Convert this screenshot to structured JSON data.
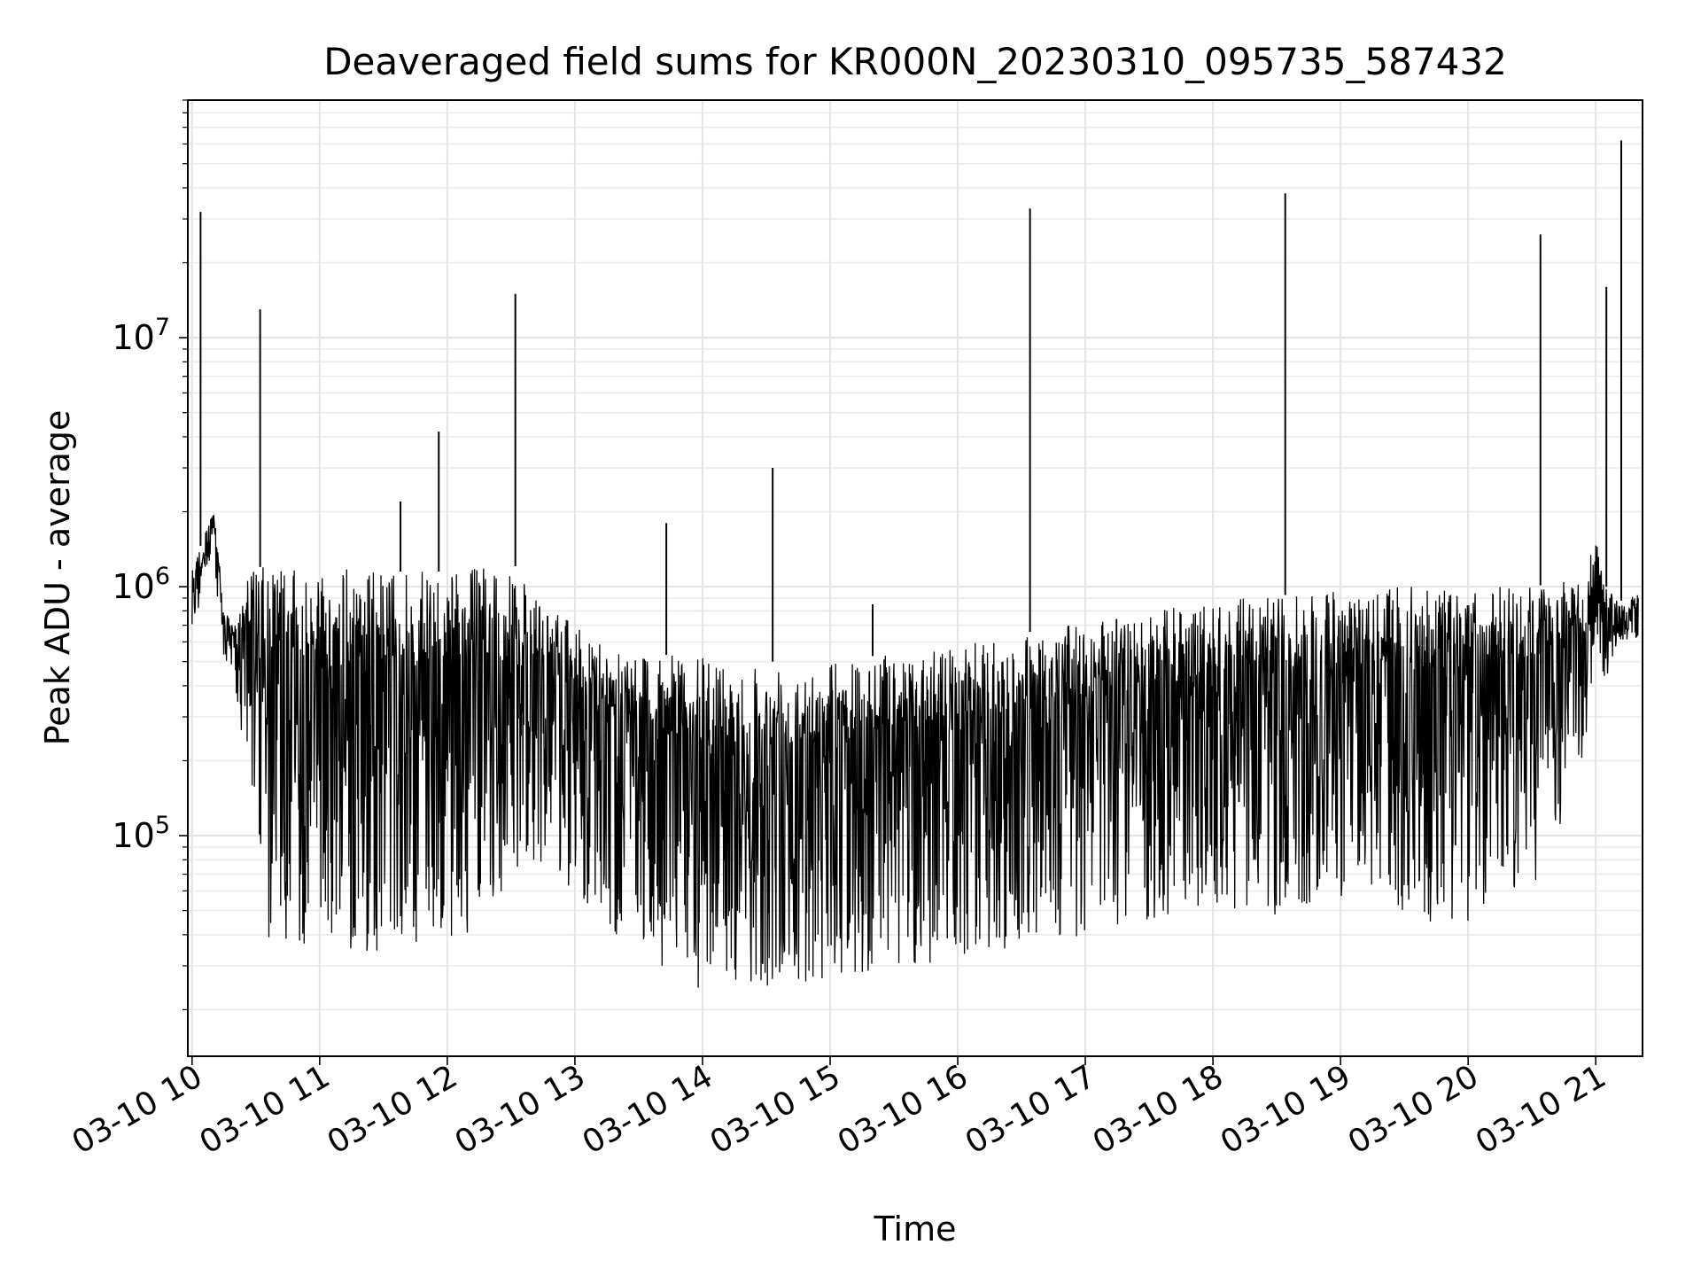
{
  "chart_data": {
    "type": "line",
    "title": "Deaveraged field sums for KR000N_20230310_095735_587432",
    "xlabel": "Time",
    "ylabel": "Peak ADU - average",
    "yscale": "log",
    "grid": true,
    "line_color": "#000000",
    "xlim": [
      "2023-03-10 09:58",
      "2023-03-10 21:22"
    ],
    "ylim": [
      13000,
      90000000
    ],
    "x_ticks": [
      {
        "t": "2023-03-10 10:00",
        "label": "03-10 10"
      },
      {
        "t": "2023-03-10 11:00",
        "label": "03-10 11"
      },
      {
        "t": "2023-03-10 12:00",
        "label": "03-10 12"
      },
      {
        "t": "2023-03-10 13:00",
        "label": "03-10 13"
      },
      {
        "t": "2023-03-10 14:00",
        "label": "03-10 14"
      },
      {
        "t": "2023-03-10 15:00",
        "label": "03-10 15"
      },
      {
        "t": "2023-03-10 16:00",
        "label": "03-10 16"
      },
      {
        "t": "2023-03-10 17:00",
        "label": "03-10 17"
      },
      {
        "t": "2023-03-10 18:00",
        "label": "03-10 18"
      },
      {
        "t": "2023-03-10 19:00",
        "label": "03-10 19"
      },
      {
        "t": "2023-03-10 20:00",
        "label": "03-10 20"
      },
      {
        "t": "2023-03-10 21:00",
        "label": "03-10 21"
      }
    ],
    "y_ticks": [
      {
        "value": 100000,
        "base": "10",
        "exp": "5"
      },
      {
        "value": 1000000,
        "base": "10",
        "exp": "6"
      },
      {
        "value": 10000000,
        "base": "10",
        "exp": "7"
      }
    ],
    "series": [
      {
        "x": [
          "2023-03-10 10:00",
          "2023-03-10 10:05",
          "2023-03-10 10:10",
          "2023-03-10 10:15",
          "2023-03-10 10:20",
          "2023-03-10 10:25",
          "2023-03-10 10:30",
          "2023-03-10 10:35",
          "2023-03-10 10:40",
          "2023-03-10 10:45",
          "2023-03-10 10:50",
          "2023-03-10 11:00",
          "2023-03-10 11:15",
          "2023-03-10 11:30",
          "2023-03-10 11:45",
          "2023-03-10 12:00",
          "2023-03-10 12:15",
          "2023-03-10 12:30",
          "2023-03-10 12:40",
          "2023-03-10 12:50",
          "2023-03-10 13:00",
          "2023-03-10 13:15",
          "2023-03-10 13:30",
          "2023-03-10 13:45",
          "2023-03-10 14:00",
          "2023-03-10 14:15",
          "2023-03-10 14:30",
          "2023-03-10 14:45",
          "2023-03-10 15:00",
          "2023-03-10 15:15",
          "2023-03-10 15:30",
          "2023-03-10 15:45",
          "2023-03-10 16:00",
          "2023-03-10 16:15",
          "2023-03-10 16:30",
          "2023-03-10 16:45",
          "2023-03-10 17:00",
          "2023-03-10 17:15",
          "2023-03-10 17:30",
          "2023-03-10 17:45",
          "2023-03-10 18:00",
          "2023-03-10 18:15",
          "2023-03-10 18:30",
          "2023-03-10 18:45",
          "2023-03-10 19:00",
          "2023-03-10 19:15",
          "2023-03-10 19:30",
          "2023-03-10 19:45",
          "2023-03-10 20:00",
          "2023-03-10 20:15",
          "2023-03-10 20:30",
          "2023-03-10 20:45",
          "2023-03-10 20:55",
          "2023-03-10 21:00",
          "2023-03-10 21:05",
          "2023-03-10 21:10",
          "2023-03-10 21:15",
          "2023-03-10 21:20"
        ],
        "upper": [
          1300000,
          1500000,
          2200000,
          800000,
          700000,
          1100000,
          1200000,
          1200000,
          1200000,
          1200000,
          1150000,
          1200000,
          1200000,
          1150000,
          1150000,
          1150000,
          1200000,
          1300000,
          900000,
          800000,
          700000,
          600000,
          550000,
          530000,
          520000,
          500000,
          500000,
          500000,
          510000,
          520000,
          540000,
          560000,
          580000,
          610000,
          650000,
          680000,
          720000,
          760000,
          800000,
          830000,
          860000,
          900000,
          920000,
          940000,
          960000,
          980000,
          1000000,
          1000000,
          1000000,
          1000000,
          1000000,
          1050000,
          1050000,
          1700000,
          1000000,
          900000,
          850000,
          1000000
        ],
        "lower": [
          400000,
          1200000,
          1200000,
          500000,
          400000,
          170000,
          100000,
          38000,
          35000,
          38000,
          37000,
          36000,
          34000,
          33000,
          35000,
          36000,
          42000,
          70000,
          75000,
          70000,
          60000,
          42000,
          35000,
          28000,
          23000,
          24000,
          23000,
          23000,
          25000,
          28000,
          30000,
          30000,
          32000,
          33000,
          35000,
          37000,
          38000,
          40000,
          45000,
          47000,
          48000,
          50000,
          48000,
          50000,
          55000,
          55000,
          45000,
          45000,
          45000,
          50000,
          60000,
          120000,
          220000,
          600000,
          400000,
          600000,
          600000,
          600000
        ]
      }
    ],
    "spikes": [
      {
        "t": "2023-03-10 10:04",
        "value": 32000000
      },
      {
        "t": "2023-03-10 10:32",
        "value": 13000000
      },
      {
        "t": "2023-03-10 11:38",
        "value": 2200000
      },
      {
        "t": "2023-03-10 11:56",
        "value": 4200000
      },
      {
        "t": "2023-03-10 12:32",
        "value": 15000000
      },
      {
        "t": "2023-03-10 13:43",
        "value": 1800000
      },
      {
        "t": "2023-03-10 14:33",
        "value": 3000000
      },
      {
        "t": "2023-03-10 15:20",
        "value": 850000
      },
      {
        "t": "2023-03-10 16:34",
        "value": 33000000
      },
      {
        "t": "2023-03-10 18:34",
        "value": 38000000
      },
      {
        "t": "2023-03-10 20:34",
        "value": 26000000
      },
      {
        "t": "2023-03-10 21:05",
        "value": 16000000
      },
      {
        "t": "2023-03-10 21:12",
        "value": 62000000
      }
    ]
  }
}
